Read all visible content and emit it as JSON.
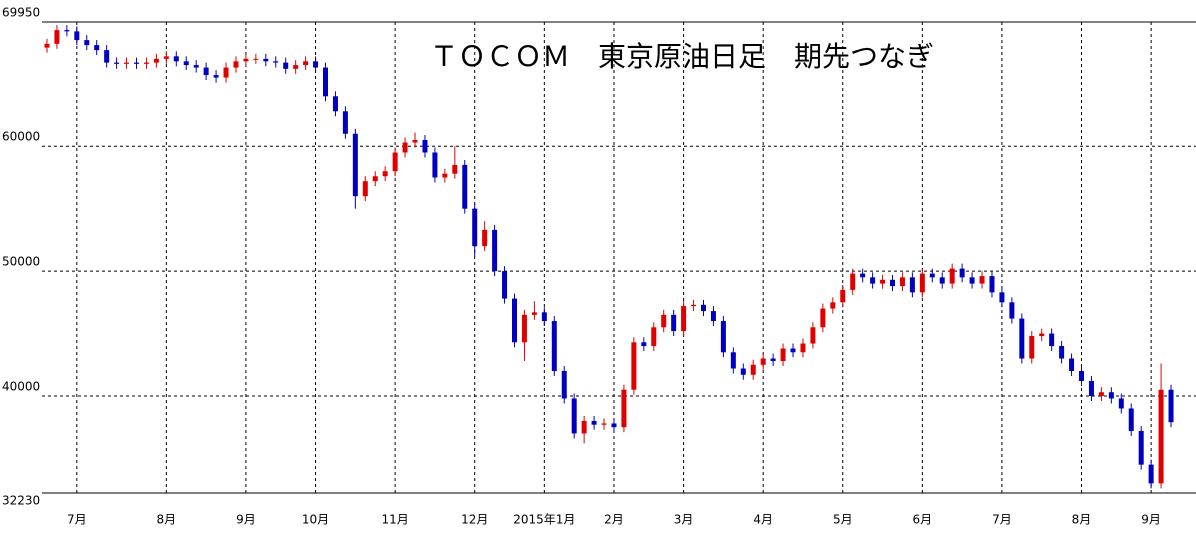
{
  "chart_data": {
    "type": "candlestick",
    "title": "ＴＯＣＯＭ　東京原油日足　期先つなぎ",
    "categories": [
      null,
      null,
      null,
      "7月",
      null,
      null,
      null,
      null,
      null,
      null,
      null,
      null,
      "8月",
      null,
      null,
      null,
      null,
      null,
      null,
      null,
      "9月",
      null,
      null,
      null,
      null,
      null,
      null,
      "10月",
      null,
      null,
      null,
      null,
      null,
      null,
      null,
      "11月",
      null,
      null,
      null,
      null,
      null,
      null,
      null,
      "12月",
      null,
      null,
      null,
      null,
      null,
      null,
      "2015年1月",
      null,
      null,
      null,
      null,
      null,
      null,
      "2月",
      null,
      null,
      null,
      null,
      null,
      null,
      "3月",
      null,
      null,
      null,
      null,
      null,
      null,
      null,
      "4月",
      null,
      null,
      null,
      null,
      null,
      null,
      null,
      "5月",
      null,
      null,
      null,
      null,
      null,
      null,
      null,
      "6月",
      null,
      null,
      null,
      null,
      null,
      null,
      null,
      "7月",
      null,
      null,
      null,
      null,
      null,
      null,
      null,
      "8月",
      null,
      null,
      null,
      null,
      null,
      null,
      "9月",
      null,
      null
    ],
    "open": [
      67900,
      68200,
      69300,
      69200,
      68500,
      68100,
      67700,
      66700,
      66600,
      66700,
      66600,
      66700,
      67000,
      67200,
      66800,
      66500,
      66300,
      65700,
      65500,
      66300,
      66800,
      67000,
      67000,
      66800,
      66700,
      66200,
      66500,
      66800,
      66300,
      64000,
      62800,
      61000,
      56000,
      57200,
      57600,
      58000,
      59500,
      60300,
      60500,
      59500,
      57500,
      57800,
      58500,
      55000,
      52000,
      53300,
      50000,
      47800,
      44300,
      46500,
      46700,
      46000,
      42000,
      39800,
      37000,
      38000,
      37700,
      37800,
      37500,
      40500,
      44300,
      44000,
      45500,
      46500,
      45200,
      47200,
      47300,
      46800,
      46000,
      43500,
      42200,
      41700,
      42500,
      43000,
      42800,
      43800,
      43500,
      44200,
      45500,
      47000,
      47500,
      48500,
      49800,
      49500,
      49000,
      49300,
      48800,
      49500,
      48300,
      49800,
      49500,
      49000,
      50200,
      49500,
      49000,
      49600,
      48300,
      47500,
      46200,
      43000,
      44800,
      45000,
      44000,
      43000,
      42000,
      41200,
      40000,
      40300,
      39800,
      39000,
      37200,
      34500,
      33000,
      40500
    ],
    "high": [
      68600,
      69700,
      69700,
      69600,
      68900,
      68500,
      68100,
      67100,
      67100,
      67100,
      67100,
      67400,
      67600,
      67600,
      67200,
      66900,
      66700,
      66100,
      66700,
      67200,
      67400,
      67400,
      67400,
      67200,
      67100,
      66900,
      67200,
      67200,
      66700,
      64400,
      63200,
      61400,
      57600,
      58000,
      58400,
      59900,
      60700,
      61100,
      60900,
      59900,
      58200,
      60000,
      58900,
      55400,
      54000,
      53700,
      50400,
      48200,
      46900,
      47600,
      47100,
      46400,
      42400,
      40200,
      38400,
      38400,
      38200,
      38200,
      40900,
      44700,
      44700,
      45900,
      46900,
      46900,
      47600,
      47700,
      47700,
      47200,
      46400,
      43900,
      42600,
      42900,
      43400,
      43400,
      44200,
      44200,
      44600,
      45900,
      47400,
      47900,
      48900,
      50200,
      50200,
      49900,
      49700,
      49700,
      49900,
      49900,
      50200,
      50200,
      49900,
      50600,
      50600,
      49900,
      50000,
      50000,
      48700,
      47900,
      46600,
      45200,
      45400,
      45400,
      44400,
      43400,
      42400,
      41600,
      40700,
      40700,
      40200,
      39400,
      37600,
      34900,
      42600,
      40900
    ],
    "low": [
      67500,
      67800,
      68800,
      68100,
      67700,
      67300,
      66300,
      66200,
      66200,
      66200,
      66200,
      66300,
      66600,
      66400,
      66100,
      65900,
      65300,
      65100,
      65100,
      65900,
      66400,
      66600,
      66400,
      66300,
      65800,
      65800,
      66100,
      65900,
      63600,
      62400,
      60600,
      55000,
      55600,
      56800,
      57200,
      57600,
      59100,
      59900,
      59100,
      57100,
      57100,
      57400,
      54600,
      51200,
      51600,
      49600,
      47400,
      43900,
      42800,
      46100,
      45600,
      41600,
      39400,
      36600,
      36200,
      37300,
      37300,
      37100,
      37100,
      40100,
      43600,
      43600,
      45100,
      44800,
      44800,
      46800,
      46400,
      45600,
      43100,
      41800,
      41300,
      41300,
      42100,
      42400,
      42400,
      43100,
      43100,
      43800,
      45100,
      46600,
      47100,
      48100,
      49100,
      48600,
      48600,
      48400,
      48400,
      47900,
      47900,
      49100,
      48600,
      48600,
      49100,
      48600,
      48600,
      47900,
      47100,
      45800,
      42600,
      42600,
      44400,
      43600,
      42600,
      41600,
      40800,
      39600,
      39600,
      39400,
      38600,
      36800,
      34100,
      32600,
      32600,
      37500
    ],
    "close": [
      68200,
      69300,
      69200,
      68500,
      68100,
      67700,
      66700,
      66600,
      66700,
      66600,
      66700,
      67000,
      67200,
      66800,
      66500,
      66300,
      65700,
      65500,
      66300,
      66800,
      67000,
      67000,
      66800,
      66700,
      66200,
      66500,
      66800,
      66300,
      64000,
      62800,
      61000,
      56000,
      57200,
      57600,
      58000,
      59500,
      60300,
      60500,
      59500,
      57500,
      57800,
      58500,
      55000,
      52000,
      53300,
      50000,
      47800,
      44300,
      46500,
      46700,
      46000,
      42000,
      39800,
      37000,
      38000,
      37700,
      37800,
      37500,
      40500,
      44300,
      44000,
      45500,
      46500,
      45200,
      47200,
      47300,
      46800,
      46000,
      43500,
      42200,
      41700,
      42500,
      43000,
      42800,
      43800,
      43500,
      44200,
      45500,
      47000,
      47500,
      48500,
      49800,
      49500,
      49000,
      49300,
      48800,
      49500,
      48300,
      49800,
      49500,
      49000,
      50200,
      49500,
      49000,
      49600,
      48300,
      47500,
      46200,
      43000,
      44800,
      45000,
      44000,
      43000,
      42000,
      41200,
      40000,
      40300,
      39800,
      39000,
      37200,
      34500,
      33000,
      40500,
      37900
    ],
    "up_color": "#e00000",
    "down_color": "#0000c0",
    "ylim": [
      32230,
      69950
    ],
    "yticks": [
      32230,
      40000,
      50000,
      60000,
      69950
    ],
    "grid": true
  }
}
